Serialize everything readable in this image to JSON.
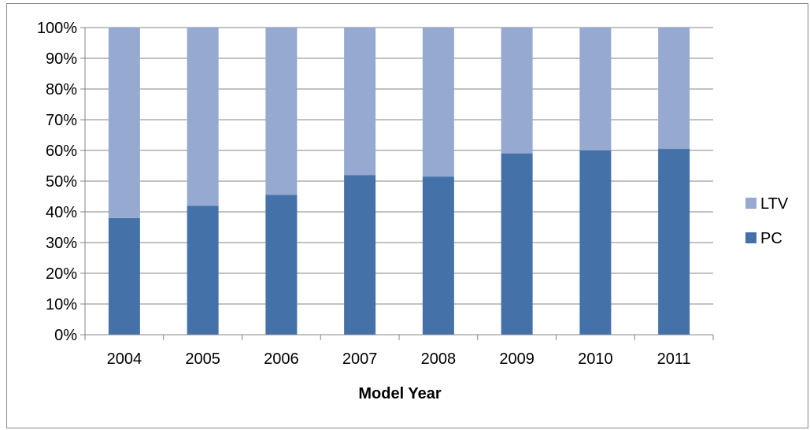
{
  "chart_data": {
    "type": "bar",
    "stacked": true,
    "percent": true,
    "categories": [
      "2004",
      "2005",
      "2006",
      "2007",
      "2008",
      "2009",
      "2010",
      "2011"
    ],
    "series": [
      {
        "name": "PC",
        "color": "#4472a8",
        "values": [
          38,
          42,
          45.5,
          52,
          51.5,
          59,
          60,
          60.5
        ]
      },
      {
        "name": "LTV",
        "color": "#95a9d1",
        "values": [
          62,
          58,
          54.5,
          48,
          48.5,
          41,
          40,
          39.5
        ]
      }
    ],
    "title": "",
    "xlabel": "Model Year",
    "ylabel": "",
    "ylim": [
      0,
      100
    ],
    "yticks": [
      "0%",
      "10%",
      "20%",
      "30%",
      "40%",
      "50%",
      "60%",
      "70%",
      "80%",
      "90%",
      "100%"
    ],
    "grid": true,
    "legend_position": "right",
    "legend_order": [
      "LTV",
      "PC"
    ]
  }
}
